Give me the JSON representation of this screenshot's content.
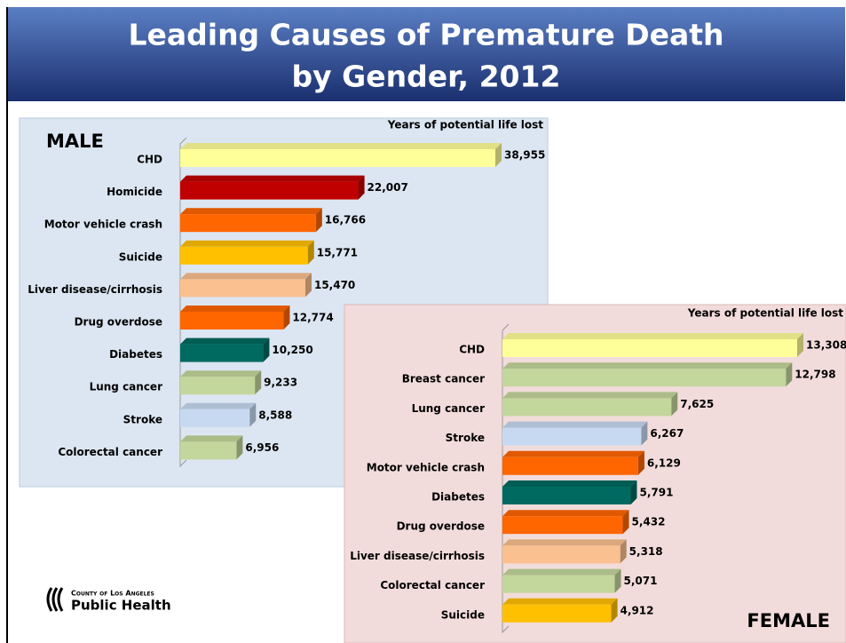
{
  "page_title": [
    "Leading Causes of Premature Death",
    "by Gender, 2012"
  ],
  "logo": [
    "County of Los Angeles",
    "Public Health"
  ],
  "chart_data": [
    {
      "type": "bar",
      "title": "MALE",
      "axis_label": "Years of potential life lost",
      "categories": [
        "CHD",
        "Homicide",
        "Motor vehicle crash",
        "Suicide",
        "Liver disease/cirrhosis",
        "Drug overdose",
        "Diabetes",
        "Lung cancer",
        "Stroke",
        "Colorectal cancer"
      ],
      "values": [
        38955,
        22007,
        16766,
        15771,
        15470,
        12774,
        10250,
        9233,
        8588,
        6956
      ],
      "value_labels": [
        "38,955",
        "22,007",
        "16,766",
        "15,771",
        "15,470",
        "12,774",
        "10,250",
        "9,233",
        "8,588",
        "6,956"
      ],
      "colors": [
        "#ffff99",
        "#c00000",
        "#ff6600",
        "#ffc000",
        "#fac090",
        "#ff6600",
        "#006a60",
        "#c3d69b",
        "#c6d9f1",
        "#c3d69b"
      ]
    },
    {
      "type": "bar",
      "title": "FEMALE",
      "axis_label": "Years of potential life lost",
      "categories": [
        "CHD",
        "Breast cancer",
        "Lung cancer",
        "Stroke",
        "Motor vehicle crash",
        "Diabetes",
        "Drug overdose",
        "Liver disease/cirrhosis",
        "Colorectal cancer",
        "Suicide"
      ],
      "values": [
        13308,
        12798,
        7625,
        6267,
        6129,
        5791,
        5432,
        5318,
        5071,
        4912
      ],
      "value_labels": [
        "13,308",
        "12,798",
        "7,625",
        "6,267",
        "6,129",
        "5,791",
        "5,432",
        "5,318",
        "5,071",
        "4,912"
      ],
      "colors": [
        "#ffff99",
        "#c3d69b",
        "#c3d69b",
        "#c6d9f1",
        "#ff6600",
        "#006a60",
        "#ff6600",
        "#fac090",
        "#c3d69b",
        "#ffc000"
      ]
    }
  ]
}
